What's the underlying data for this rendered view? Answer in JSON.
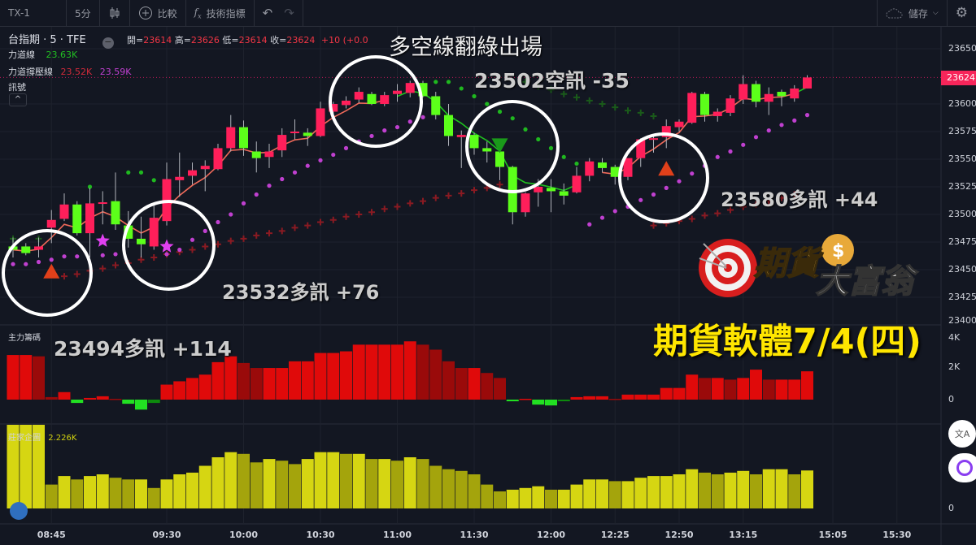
{
  "toolbar": {
    "symbol": "TX-1",
    "interval": "5分",
    "chart_type_icon": "candlestick-icon",
    "compare_label": "比較",
    "indicators_label": "技術指標",
    "save_label": "儲存"
  },
  "legend": {
    "title": "台指期 · 5 · TFE",
    "open_label": "開=",
    "open": "23614",
    "high_label": "高=",
    "high": "23626",
    "low_label": "低=",
    "low": "23614",
    "close_label": "收=",
    "close": "23624",
    "change": "+10 (+0.0",
    "line1_name": "力道線",
    "line1_value": "23.63K",
    "line2_name": "力道撐壓線",
    "line2_value_a": "23.52K",
    "line2_value_b": "23.59K",
    "signal_name": "訊號",
    "panel2_name": "主力籌碼",
    "panel3_name": "莊家企圖",
    "panel3_value": "2.226K"
  },
  "price_axis": {
    "labels": [
      "23650",
      "23600",
      "23575",
      "23550",
      "23525",
      "23500",
      "23475",
      "23450",
      "23425",
      "23400"
    ],
    "current_price": "23624"
  },
  "panel2_axis": [
    "4K",
    "2K",
    "0"
  ],
  "panel3_axis": [
    "0"
  ],
  "annotations": {
    "exit_note": "多空線翻綠出場",
    "short_signal": "23502空訊 -35",
    "long_signal_1": "23532多訊 +76",
    "long_signal_2": "23494多訊 +114",
    "long_signal_3": "23580多訊 +44",
    "headline": "期貨軟體7/4(四)"
  },
  "logo_text": "期貨大富翁",
  "colors": {
    "up": "#ff1f5a",
    "down": "#5cff1a",
    "background": "#131722",
    "headline": "#ffe600",
    "support_dots": "#c040d0",
    "resist_dots": "#1fb81f"
  },
  "chart_data": {
    "type": "candlestick",
    "x_ticks": [
      {
        "label": "08:45",
        "index": 3
      },
      {
        "label": "09:30",
        "index": 12
      },
      {
        "label": "10:00",
        "index": 18
      },
      {
        "label": "10:30",
        "index": 24
      },
      {
        "label": "11:00",
        "index": 30
      },
      {
        "label": "11:30",
        "index": 36
      },
      {
        "label": "12:00",
        "index": 42
      },
      {
        "label": "12:25",
        "index": 47
      },
      {
        "label": "12:50",
        "index": 52
      },
      {
        "label": "13:15",
        "index": 57
      },
      {
        "label": "15:05",
        "index": 64
      },
      {
        "label": "15:30",
        "index": 69
      }
    ],
    "ylim": [
      23400,
      23675
    ],
    "open": [
      23471,
      23471,
      23468,
      23488,
      23496,
      23509,
      23483,
      23510,
      23512,
      23490,
      23478,
      23471,
      23494,
      23531,
      23535,
      23541,
      23541,
      23560,
      23579,
      23557,
      23552,
      23558,
      23574,
      23574,
      23571,
      23593,
      23599,
      23604,
      23609,
      23600,
      23609,
      23610,
      23619,
      23607,
      23590,
      23570,
      23572,
      23560,
      23557,
      23543,
      23502,
      23520,
      23524,
      23521,
      23520,
      23535,
      23547,
      23543,
      23534,
      23551,
      23568,
      23570,
      23579,
      23583,
      23609,
      23589,
      23592,
      23604,
      23618,
      23602,
      23611,
      23605,
      23614
    ],
    "high": [
      23479,
      23474,
      23479,
      23504,
      23519,
      23512,
      23524,
      23521,
      23538,
      23503,
      23498,
      23508,
      23547,
      23556,
      23547,
      23549,
      23564,
      23590,
      23585,
      23566,
      23564,
      23578,
      23586,
      23578,
      23602,
      23602,
      23607,
      23615,
      23611,
      23611,
      23618,
      23621,
      23621,
      23611,
      23600,
      23576,
      23574,
      23566,
      23558,
      23544,
      23520,
      23532,
      23532,
      23528,
      23543,
      23551,
      23551,
      23545,
      23551,
      23569,
      23571,
      23586,
      23586,
      23611,
      23611,
      23596,
      23608,
      23626,
      23621,
      23615,
      23613,
      23617,
      23626
    ],
    "low": [
      23461,
      23463,
      23461,
      23474,
      23494,
      23481,
      23461,
      23491,
      23486,
      23470,
      23461,
      23468,
      23490,
      23516,
      23527,
      23521,
      23540,
      23557,
      23553,
      23538,
      23542,
      23552,
      23568,
      23562,
      23570,
      23591,
      23596,
      23601,
      23599,
      23598,
      23602,
      23606,
      23606,
      23586,
      23562,
      23542,
      23554,
      23547,
      23531,
      23491,
      23498,
      23507,
      23502,
      23509,
      23519,
      23530,
      23538,
      23527,
      23531,
      23543,
      23556,
      23560,
      23575,
      23582,
      23584,
      23584,
      23589,
      23600,
      23597,
      23590,
      23598,
      23602,
      23614
    ],
    "close": [
      23468,
      23465,
      23471,
      23495,
      23509,
      23483,
      23510,
      23511,
      23491,
      23478,
      23473,
      23497,
      23532,
      23534,
      23540,
      23544,
      23560,
      23579,
      23560,
      23551,
      23557,
      23572,
      23575,
      23571,
      23596,
      23600,
      23603,
      23611,
      23600,
      23608,
      23612,
      23619,
      23607,
      23590,
      23571,
      23572,
      23560,
      23557,
      23543,
      23502,
      23519,
      23525,
      23521,
      23517,
      23535,
      23548,
      23542,
      23534,
      23551,
      23568,
      23569,
      23580,
      23584,
      23610,
      23590,
      23593,
      23605,
      23618,
      23602,
      23609,
      23607,
      23614,
      23624
    ],
    "trend_line_segments": [
      {
        "from": 0,
        "to": 29,
        "color": "#f06a5a"
      },
      {
        "from": 30,
        "to": 44,
        "color": "#1fc21f"
      },
      {
        "from": 46,
        "to": 61,
        "color": "#f06a5a"
      },
      {
        "from": 61,
        "to": 62,
        "color": "#1fc21f"
      }
    ],
    "support_dots": [
      23455,
      23455,
      23457,
      23459,
      23462,
      23462,
      null,
      23463,
      23464,
      null,
      null,
      null,
      23464,
      23468,
      23477,
      23485,
      23493,
      23500,
      23510,
      23518,
      23526,
      23532,
      23538,
      23544,
      23549,
      23554,
      23560,
      23566,
      23571,
      23576,
      23579,
      23584,
      23588,
      null,
      null,
      null,
      null,
      null,
      null,
      null,
      null,
      null,
      null,
      null,
      null,
      23491,
      23497,
      23503,
      23507,
      23513,
      23518,
      23524,
      23530,
      23537,
      23544,
      23552,
      23557,
      23563,
      23570,
      23576,
      23581,
      23585,
      23590
    ],
    "resist_dots": [
      null,
      null,
      null,
      null,
      null,
      null,
      23525,
      null,
      null,
      23538,
      23538,
      23531,
      null,
      null,
      null,
      null,
      null,
      null,
      null,
      null,
      null,
      null,
      null,
      null,
      null,
      null,
      null,
      null,
      null,
      null,
      null,
      null,
      null,
      23620,
      23620,
      23614,
      23607,
      23600,
      23593,
      23587,
      23577,
      23568,
      23560,
      23552,
      23546,
      null,
      null,
      null,
      null,
      null,
      null,
      null,
      null,
      null,
      null,
      null,
      null,
      null,
      null,
      null,
      null,
      null,
      null
    ],
    "support_crosses": [
      null,
      null,
      null,
      null,
      23444,
      23446,
      23449,
      23451,
      23454,
      23456,
      23459,
      23461,
      23464,
      23466,
      23468,
      23471,
      23473,
      23476,
      23478,
      23481,
      23483,
      23485,
      23488,
      23490,
      23493,
      23495,
      23498,
      23500,
      23502,
      23505,
      23507,
      23510,
      23512,
      23515,
      23517,
      23519,
      23522,
      23524,
      23527,
      null,
      null,
      null,
      null,
      null,
      null,
      null,
      null,
      null,
      null,
      null,
      23490,
      23492,
      23494,
      23496,
      23499,
      23501,
      23504,
      23507,
      23509,
      23512,
      23515,
      23518,
      null
    ],
    "resist_crosses": [
      23478,
      null,
      23478,
      null,
      null,
      null,
      null,
      null,
      null,
      null,
      null,
      null,
      null,
      null,
      null,
      null,
      null,
      null,
      null,
      null,
      null,
      null,
      null,
      null,
      null,
      null,
      null,
      null,
      null,
      null,
      null,
      null,
      null,
      null,
      null,
      null,
      null,
      null,
      null,
      null,
      23620,
      23616,
      23613,
      23609,
      23606,
      23603,
      23600,
      23597,
      23594,
      23592,
      23589,
      null,
      null,
      null,
      null,
      null,
      null,
      null,
      null,
      null,
      null,
      null,
      null
    ],
    "markers": [
      {
        "type": "buy-triangle",
        "index": 3,
        "price": 23448,
        "color": "#e0401a"
      },
      {
        "type": "star",
        "index": 7,
        "price": 23476,
        "color": "#e040f0"
      },
      {
        "type": "star",
        "index": 12,
        "price": 23471,
        "color": "#e040f0"
      },
      {
        "type": "sell-triangle",
        "index": 38,
        "price": 23563,
        "color": "#1a9a1a"
      },
      {
        "type": "buy-triangle",
        "index": 51,
        "price": 23541,
        "color": "#e0401a"
      }
    ],
    "main_force_k": [
      2.68,
      2.68,
      2.6,
      0.15,
      0.45,
      -0.2,
      0.1,
      0.2,
      0.05,
      -0.25,
      -0.6,
      -0.2,
      0.9,
      1.1,
      1.3,
      1.5,
      2.25,
      2.6,
      2.2,
      1.9,
      1.9,
      1.9,
      2.3,
      2.3,
      2.8,
      2.8,
      2.9,
      3.3,
      3.3,
      3.3,
      3.3,
      3.5,
      3.3,
      3.0,
      2.3,
      1.9,
      1.9,
      1.6,
      1.3,
      -0.1,
      0.05,
      -0.3,
      -0.35,
      -0.1,
      0.15,
      0.2,
      0.2,
      0.05,
      0.3,
      0.3,
      0.3,
      0.7,
      0.7,
      1.5,
      1.3,
      1.3,
      1.2,
      1.3,
      1.8,
      1.2,
      1.2,
      1.2,
      1.7
    ],
    "intent_k": [
      5.2,
      5.2,
      5.2,
      1.4,
      1.9,
      1.7,
      1.9,
      2.0,
      1.8,
      1.7,
      1.7,
      1.2,
      1.7,
      2.0,
      2.1,
      2.5,
      3.0,
      3.3,
      3.2,
      2.7,
      2.9,
      2.8,
      2.6,
      2.9,
      3.3,
      3.3,
      3.2,
      3.2,
      2.9,
      2.9,
      2.8,
      3.0,
      2.9,
      2.5,
      2.3,
      2.2,
      2.0,
      1.4,
      1.0,
      1.1,
      1.2,
      1.3,
      1.1,
      1.1,
      1.4,
      1.7,
      1.7,
      1.6,
      1.6,
      1.8,
      1.9,
      1.9,
      2.0,
      2.3,
      2.1,
      2.0,
      2.1,
      2.2,
      2.0,
      2.3,
      2.3,
      2.0,
      2.226
    ]
  }
}
